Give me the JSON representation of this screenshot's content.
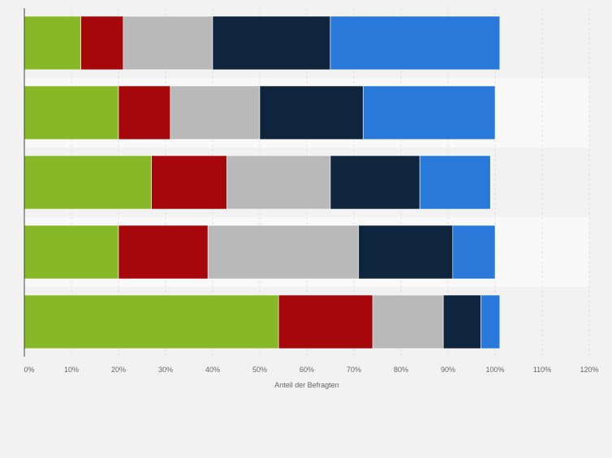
{
  "chart_data": {
    "type": "bar",
    "orientation": "horizontal",
    "stacked": true,
    "title": "",
    "xlabel": "Anteil der Befragten",
    "ylabel": "",
    "xlim": [
      0,
      120
    ],
    "xticks": [
      0,
      10,
      20,
      30,
      40,
      50,
      60,
      70,
      80,
      90,
      100,
      110,
      120
    ],
    "tick_suffix": "%",
    "grid": true,
    "legend": "none",
    "colors": [
      "#86b828",
      "#a5070a",
      "#b9b9b9",
      "#0f253d",
      "#2979db"
    ],
    "categories": [
      "",
      "",
      "",
      "",
      ""
    ],
    "series": [
      {
        "values": [
          12,
          20,
          27,
          20,
          54
        ]
      },
      {
        "values": [
          9,
          11,
          16,
          19,
          20
        ]
      },
      {
        "values": [
          19,
          19,
          22,
          32,
          15
        ]
      },
      {
        "values": [
          25,
          22,
          19,
          20,
          8
        ]
      },
      {
        "values": [
          36,
          28,
          15,
          9,
          4
        ]
      }
    ]
  }
}
